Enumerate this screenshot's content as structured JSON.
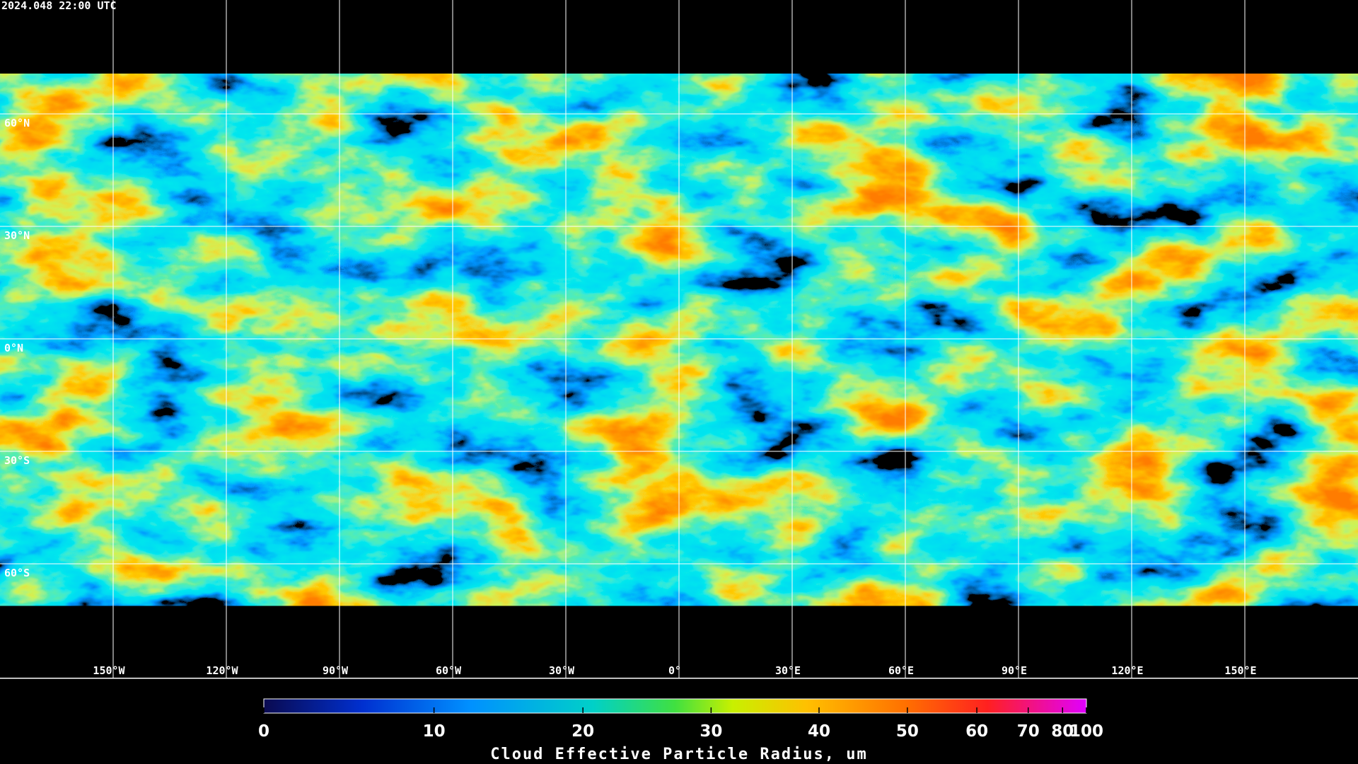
{
  "timestamp": "2024.048 22:00 UTC",
  "map": {
    "lat_lines": [
      {
        "value": 60,
        "label": "60°N"
      },
      {
        "value": 30,
        "label": "30°N"
      },
      {
        "value": 0,
        "label": "0°N"
      },
      {
        "value": -30,
        "label": "30°S"
      },
      {
        "value": -60,
        "label": "60°S"
      }
    ],
    "lon_lines": [
      {
        "value": -150,
        "label": "150°W"
      },
      {
        "value": -120,
        "label": "120°W"
      },
      {
        "value": -90,
        "label": "90°W"
      },
      {
        "value": -60,
        "label": "60°W"
      },
      {
        "value": -30,
        "label": "30°W"
      },
      {
        "value": 0,
        "label": "0°"
      },
      {
        "value": 30,
        "label": "30°E"
      },
      {
        "value": 60,
        "label": "60°E"
      },
      {
        "value": 90,
        "label": "90°E"
      },
      {
        "value": 120,
        "label": "120°E"
      },
      {
        "value": 150,
        "label": "150°E"
      }
    ]
  },
  "colorbar": {
    "title": "Cloud Effective Particle Radius, um",
    "range": [
      0,
      100
    ],
    "ticks": [
      0,
      10,
      20,
      30,
      40,
      50,
      60,
      70,
      80,
      100
    ]
  }
}
